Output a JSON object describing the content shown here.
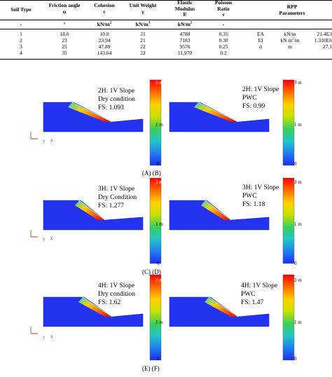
{
  "table": {
    "headers": {
      "soil_type": "Soil Type",
      "friction_angle": "Friction angle",
      "friction_symbol": "φ",
      "cohesion": "Cohesion",
      "cohesion_symbol": "c",
      "unit_weight": "Unit Weight",
      "unit_weight_symbol": "γ",
      "elastic_modulus_1": "Elastic",
      "elastic_modulus_2": "Modulus",
      "elastic_modulus_symbol": "E",
      "poisson_1": "Poisson",
      "poisson_2": "Ratio",
      "poisson_symbol": "ν",
      "rpp_1": "RPP",
      "rpp_2": "Parameters"
    },
    "units": {
      "soil_type": "-",
      "friction_angle": "°",
      "cohesion": "kN/m",
      "cohesion_exp": "2",
      "unit_weight": "kN/m",
      "unit_weight_exp": "3",
      "elastic_modulus": "kN/m",
      "elastic_modulus_exp": "2",
      "poisson": "-"
    },
    "rows": [
      {
        "soil": "1",
        "phi": "18.6",
        "c": "10.8",
        "gamma": "21",
        "E": "4788",
        "nu": "0.35"
      },
      {
        "soil": "2",
        "phi": "23",
        "c": "23.94",
        "gamma": "21",
        "E": "7183",
        "nu": "0.30"
      },
      {
        "soil": "3",
        "phi": "25",
        "c": "47.89",
        "gamma": "22",
        "E": "9576",
        "nu": "0.25"
      },
      {
        "soil": "4",
        "phi": "35",
        "c": "143.64",
        "gamma": "22",
        "E": "11,970",
        "nu": "0.2"
      }
    ],
    "rpp": [
      {
        "name": "EA",
        "unit": "kN/m",
        "unit_exp": "",
        "unit_tail": "",
        "value": "21.4E3"
      },
      {
        "name": "EI",
        "unit": "kN m",
        "unit_exp": "2",
        "unit_tail": "/m",
        "value": "1.310E6"
      },
      {
        "name": "d",
        "unit": "m",
        "unit_exp": "",
        "unit_tail": "",
        "value": "27.1"
      }
    ]
  },
  "figure": {
    "panels": [
      {
        "slope": "2H: 1V Slope",
        "cond": "Dry condition",
        "fs": "FS: 1.093"
      },
      {
        "slope": "2H: 1V Slope",
        "cond": "PWC",
        "fs": "FS: 0.99"
      },
      {
        "slope": "3H: 1V Slope",
        "cond": "Dry Condition",
        "fs": "FS: 1.277"
      },
      {
        "slope": "3H: 1V Slope",
        "cond": "PWC",
        "fs": "FS: 1.18"
      },
      {
        "slope": "4H: 1V Slope",
        "cond": "Dry condition",
        "fs": "FS: 1.62"
      },
      {
        "slope": "4H: 1V Slope",
        "cond": "PWC",
        "fs": "FS: 1.47"
      }
    ],
    "sublabels": [
      "(A) (B)",
      "(C) (D)",
      "(E) (F)"
    ],
    "colorbar": {
      "top": "3 m",
      "mid": "1 m",
      "bottom": "0"
    },
    "axis": {
      "x": "x",
      "y": "y"
    },
    "colors": {
      "soil_blue": "#2433f0",
      "ramp": [
        "#ff0000",
        "#ff6a00",
        "#ffd000",
        "#c8e000",
        "#3ad05a",
        "#22c6c6",
        "#1f7ff0",
        "#1f2ef0"
      ]
    }
  }
}
